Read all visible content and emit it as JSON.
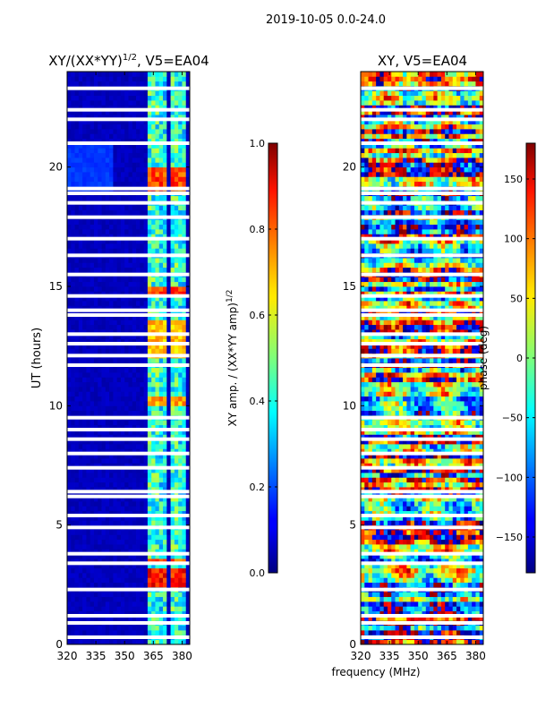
{
  "suptitle": "2019-10-05 0.0-24.0",
  "xlabel_shared": "frequency (MHz)",
  "chart_data": [
    {
      "type": "heatmap",
      "title": "XY/(XX*YY)",
      "title_superscript": "1/2",
      "title_suffix": ", V5=EA04",
      "xlabel": "",
      "ylabel": "UT (hours)",
      "xlim": [
        320,
        384
      ],
      "ylim": [
        0,
        24
      ],
      "xticks": [
        320,
        335,
        350,
        365,
        380
      ],
      "yticks": [
        0,
        5,
        10,
        15,
        20
      ],
      "colormap": "jet",
      "colorbar": {
        "label": "XY amp. / (XX*YY amp)",
        "label_superscript": "1/2",
        "range": [
          0.0,
          1.0
        ],
        "ticks": [
          "0.0",
          "0.2",
          "0.4",
          "0.6",
          "0.8",
          "1.0"
        ],
        "tick_values": [
          0.0,
          0.2,
          0.4,
          0.6,
          0.8,
          1.0
        ]
      },
      "background_value": 0.04,
      "flagged_time_gaps_hours": [
        0.3,
        0.9,
        1.2,
        2.3,
        3.4,
        3.8,
        4.9,
        5.4,
        6.2,
        6.4,
        7.4,
        8.0,
        8.6,
        9.0,
        9.5,
        11.7,
        12.1,
        12.6,
        13.0,
        13.8,
        14.0,
        14.6,
        15.5,
        16.3,
        17.0,
        17.9,
        18.5,
        18.9,
        19.1,
        21.0,
        22.0,
        22.4,
        23.3
      ],
      "highlight_bands": [
        {
          "freq_mhz": [
            363,
            367
          ],
          "value": 0.5
        },
        {
          "freq_mhz": [
            369,
            372
          ],
          "value": 0.45
        },
        {
          "freq_mhz": [
            374,
            377
          ],
          "value": 0.5
        },
        {
          "freq_mhz": [
            378,
            381
          ],
          "value": 0.45
        }
      ],
      "hot_spots": [
        {
          "ut_hours": [
            2.5,
            3.3
          ],
          "value": 0.9
        },
        {
          "ut_hours": [
            3.4,
            3.6
          ],
          "value": 0.85
        },
        {
          "ut_hours": [
            10.0,
            10.4
          ],
          "value": 0.75
        },
        {
          "ut_hours": [
            12.0,
            13.5
          ],
          "value": 0.72
        },
        {
          "ut_hours": [
            14.7,
            15.0
          ],
          "value": 0.85
        },
        {
          "ut_hours": [
            19.0,
            20.0
          ],
          "value": 0.85
        }
      ]
    },
    {
      "type": "heatmap",
      "title": "XY, V5=EA04",
      "xlabel": "frequency (MHz)",
      "ylabel": "",
      "xlim": [
        320,
        384
      ],
      "ylim": [
        0,
        24
      ],
      "xticks": [
        320,
        335,
        350,
        365,
        380
      ],
      "yticks": [
        0,
        5,
        10,
        15,
        20
      ],
      "colormap": "jet",
      "colorbar": {
        "label": "phase (deg)",
        "range": [
          -180,
          180
        ],
        "ticks": [
          "150",
          "100",
          "50",
          "0",
          "−50",
          "−100",
          "−150"
        ],
        "tick_values": [
          150,
          100,
          50,
          0,
          -50,
          -100,
          -150
        ]
      },
      "flagged_time_gaps_hours": [
        0.3,
        0.9,
        1.2,
        2.3,
        3.4,
        3.8,
        4.9,
        5.4,
        6.2,
        6.4,
        7.4,
        8.0,
        8.6,
        9.0,
        9.5,
        11.7,
        12.1,
        12.6,
        13.0,
        13.8,
        14.0,
        14.6,
        15.5,
        16.3,
        17.0,
        17.9,
        18.5,
        18.9,
        19.1,
        21.0,
        22.0,
        22.4,
        23.3
      ]
    }
  ]
}
